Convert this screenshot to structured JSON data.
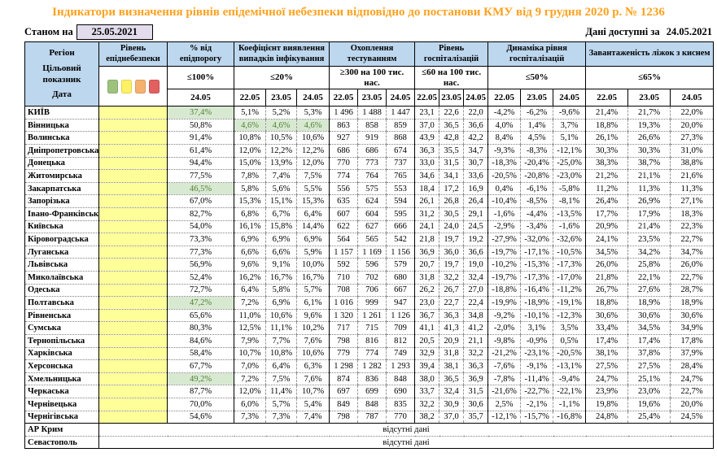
{
  "title": "Індикатори визначення рівнів епідемічної небезпеки відповідно до постанови КМУ від 9 грудня 2020 р. № 1236",
  "meta": {
    "as_of_label": "Станом на",
    "as_of_date": "25.05.2021",
    "available_label": "Дані доступні за",
    "available_date": "24.05.2021"
  },
  "colors": {
    "title_orange": "#FFA21F",
    "header_blue": "#BDD7EE",
    "level_yellow": "#FFFF99",
    "green_cell_bg": "#D8E9D2",
    "green_cell_text": "#538135",
    "date_box_lavender": "#E2DCEC"
  },
  "header": {
    "region_label": "Регіон",
    "target_label": "Цільовий показник",
    "date_label": "Дата",
    "legend_colors": [
      "#9CC27D",
      "#FFF164",
      "#F5B26E",
      "#E26060"
    ],
    "legend_names": [
      "green-level",
      "yellow-level",
      "orange-level",
      "red-level"
    ],
    "groups": [
      {
        "label": "Рівень епіднебезпеки",
        "target": "",
        "dates": []
      },
      {
        "label": "% від епідпорогу",
        "target": "≤100%",
        "dates": [
          "24.05"
        ]
      },
      {
        "label": "Коефіцієнт виявлення випадків інфікування",
        "target": "≤20%",
        "dates": [
          "22.05",
          "23.05",
          "24.05"
        ]
      },
      {
        "label": "Охоплення тестуванням",
        "target": "≥300 на 100 тис. нас.",
        "dates": [
          "22.05",
          "23.05",
          "24.05"
        ]
      },
      {
        "label": "Рівень госпіталізацій",
        "target": "≤60 на 100 тис. нас.",
        "dates": [
          "22.05",
          "23.05",
          "24.05"
        ]
      },
      {
        "label": "Динаміка рівня госпіталізацій",
        "target": "≤50%",
        "dates": [
          "22.05",
          "23.05",
          "24.05"
        ]
      },
      {
        "label": "Завантаженість ліжок з киснем",
        "target": "≤65%",
        "dates": [
          "22.05",
          "23.05",
          "24.05"
        ]
      }
    ]
  },
  "rows": [
    {
      "name": "КИЇВ",
      "values": [
        "37,4%",
        "5,1%",
        "5,2%",
        "5,3%",
        "1 496",
        "1 488",
        "1 447",
        "23,1",
        "22,6",
        "22,0",
        "-4,2%",
        "-6,2%",
        "-9,6%",
        "21,4%",
        "21,7%",
        "22,0%"
      ],
      "green": [
        0
      ]
    },
    {
      "name": "Вінницька",
      "values": [
        "50,8%",
        "4,6%",
        "4,6%",
        "4,6%",
        "863",
        "858",
        "859",
        "37,0",
        "36,5",
        "36,6",
        "4,0%",
        "1,4%",
        "3,7%",
        "18,8%",
        "19,3%",
        "20,0%"
      ],
      "green": [
        1,
        2,
        3
      ]
    },
    {
      "name": "Волинська",
      "values": [
        "91,4%",
        "10,8%",
        "10,5%",
        "10,6%",
        "927",
        "919",
        "868",
        "43,9",
        "42,8",
        "42,2",
        "8,4%",
        "4,5%",
        "5,1%",
        "26,1%",
        "26,6%",
        "27,3%"
      ],
      "green": []
    },
    {
      "name": "Дніпропетровська",
      "values": [
        "61,4%",
        "12,0%",
        "12,2%",
        "12,2%",
        "686",
        "686",
        "674",
        "36,3",
        "35,5",
        "34,7",
        "-9,3%",
        "-8,3%",
        "-12,1%",
        "30,3%",
        "30,3%",
        "31,0%"
      ],
      "green": []
    },
    {
      "name": "Донецька",
      "values": [
        "94,4%",
        "15,0%",
        "13,9%",
        "12,0%",
        "770",
        "773",
        "737",
        "33,0",
        "31,5",
        "30,7",
        "-18,3%",
        "-20,4%",
        "-25,0%",
        "38,3%",
        "38,7%",
        "38,8%"
      ],
      "green": []
    },
    {
      "name": "Житомирська",
      "values": [
        "77,5%",
        "7,8%",
        "7,4%",
        "7,5%",
        "774",
        "764",
        "765",
        "34,6",
        "34,1",
        "33,6",
        "-20,5%",
        "-20,8%",
        "-23,0%",
        "21,2%",
        "21,1%",
        "21,6%"
      ],
      "green": []
    },
    {
      "name": "Закарпатська",
      "values": [
        "46,5%",
        "5,8%",
        "5,6%",
        "5,5%",
        "556",
        "575",
        "553",
        "18,4",
        "17,2",
        "16,9",
        "0,4%",
        "-6,1%",
        "-5,8%",
        "11,2%",
        "11,3%",
        "11,3%"
      ],
      "green": [
        0
      ]
    },
    {
      "name": "Запорізька",
      "values": [
        "67,0%",
        "15,3%",
        "15,1%",
        "15,3%",
        "635",
        "624",
        "594",
        "26,1",
        "26,8",
        "26,4",
        "-10,4%",
        "-8,5%",
        "-8,1%",
        "26,4%",
        "26,9%",
        "27,1%"
      ],
      "green": []
    },
    {
      "name": "Івано-Франківська",
      "values": [
        "82,7%",
        "6,8%",
        "6,7%",
        "6,4%",
        "607",
        "604",
        "595",
        "31,2",
        "30,5",
        "29,1",
        "-1,6%",
        "-4,4%",
        "-13,5%",
        "17,7%",
        "17,9%",
        "18,3%"
      ],
      "green": []
    },
    {
      "name": "Київська",
      "values": [
        "54,0%",
        "16,1%",
        "15,8%",
        "14,4%",
        "622",
        "627",
        "666",
        "24,1",
        "24,0",
        "24,5",
        "-2,9%",
        "-3,4%",
        "-1,6%",
        "20,9%",
        "21,4%",
        "22,3%"
      ],
      "green": []
    },
    {
      "name": "Кіровоградська",
      "values": [
        "73,3%",
        "6,9%",
        "6,9%",
        "6,9%",
        "564",
        "565",
        "542",
        "21,8",
        "19,7",
        "19,2",
        "-27,9%",
        "-32,0%",
        "-32,6%",
        "24,1%",
        "23,5%",
        "22,7%"
      ],
      "green": []
    },
    {
      "name": "Луганська",
      "values": [
        "77,3%",
        "6,6%",
        "6,6%",
        "5,9%",
        "1 157",
        "1 169",
        "1 156",
        "36,9",
        "36,0",
        "36,6",
        "-19,7%",
        "-17,1%",
        "-10,5%",
        "34,5%",
        "34,2%",
        "34,7%"
      ],
      "green": []
    },
    {
      "name": "Львівська",
      "values": [
        "56,9%",
        "9,6%",
        "9,1%",
        "10,0%",
        "592",
        "596",
        "579",
        "20,7",
        "19,7",
        "19,0",
        "-10,2%",
        "-15,3%",
        "-17,3%",
        "26,0%",
        "25,8%",
        "26,0%"
      ],
      "green": []
    },
    {
      "name": "Миколаївська",
      "values": [
        "52,4%",
        "16,2%",
        "16,7%",
        "16,7%",
        "710",
        "702",
        "680",
        "31,8",
        "32,2",
        "32,4",
        "-19,7%",
        "-17,3%",
        "-17,0%",
        "21,8%",
        "22,1%",
        "22,7%"
      ],
      "green": []
    },
    {
      "name": "Одеська",
      "values": [
        "72,7%",
        "6,4%",
        "5,8%",
        "5,7%",
        "708",
        "706",
        "667",
        "26,2",
        "26,7",
        "27,0",
        "-18,8%",
        "-16,4%",
        "-11,2%",
        "26,7%",
        "27,6%",
        "28,7%"
      ],
      "green": []
    },
    {
      "name": "Полтавська",
      "values": [
        "47,2%",
        "7,2%",
        "6,9%",
        "6,1%",
        "1 016",
        "999",
        "947",
        "23,0",
        "22,7",
        "22,4",
        "-19,9%",
        "-18,9%",
        "-19,1%",
        "18,8%",
        "18,9%",
        "18,9%"
      ],
      "green": [
        0
      ]
    },
    {
      "name": "Рівненська",
      "values": [
        "65,6%",
        "11,0%",
        "10,6%",
        "9,6%",
        "1 320",
        "1 261",
        "1 126",
        "36,7",
        "36,3",
        "34,8",
        "-9,2%",
        "-10,1%",
        "-12,3%",
        "30,6%",
        "30,6%",
        "30,6%"
      ],
      "green": []
    },
    {
      "name": "Сумська",
      "values": [
        "80,3%",
        "12,5%",
        "11,1%",
        "10,2%",
        "717",
        "715",
        "709",
        "41,1",
        "41,3",
        "41,2",
        "-2,0%",
        "3,1%",
        "3,5%",
        "33,4%",
        "34,5%",
        "34,9%"
      ],
      "green": []
    },
    {
      "name": "Тернопільська",
      "values": [
        "84,6%",
        "7,9%",
        "7,7%",
        "7,6%",
        "798",
        "816",
        "812",
        "20,5",
        "20,9",
        "21,1",
        "-9,8%",
        "-0,9%",
        "0,5%",
        "17,4%",
        "17,4%",
        "17,8%"
      ],
      "green": []
    },
    {
      "name": "Харківська",
      "values": [
        "58,4%",
        "10,7%",
        "10,8%",
        "10,6%",
        "779",
        "774",
        "749",
        "32,9",
        "31,8",
        "32,2",
        "-21,2%",
        "-23,1%",
        "-20,5%",
        "38,1%",
        "37,8%",
        "37,9%"
      ],
      "green": []
    },
    {
      "name": "Херсонська",
      "values": [
        "67,7%",
        "7,0%",
        "6,4%",
        "6,3%",
        "1 298",
        "1 282",
        "1 293",
        "39,4",
        "38,1",
        "36,3",
        "-7,6%",
        "-9,1%",
        "-13,1%",
        "27,5%",
        "27,5%",
        "28,4%"
      ],
      "green": []
    },
    {
      "name": "Хмельницька",
      "values": [
        "49,2%",
        "7,2%",
        "7,5%",
        "7,6%",
        "874",
        "836",
        "848",
        "38,0",
        "36,5",
        "36,9",
        "-7,8%",
        "-11,4%",
        "-9,4%",
        "24,7%",
        "25,1%",
        "24,7%"
      ],
      "green": [
        0
      ]
    },
    {
      "name": "Черкаська",
      "values": [
        "87,7%",
        "12,0%",
        "11,4%",
        "10,7%",
        "697",
        "699",
        "690",
        "33,7",
        "32,4",
        "31,5",
        "-21,6%",
        "-22,7%",
        "-22,1%",
        "23,9%",
        "23,0%",
        "22,7%"
      ],
      "green": []
    },
    {
      "name": "Чернівецька",
      "values": [
        "70,0%",
        "6,0%",
        "5,7%",
        "5,4%",
        "849",
        "848",
        "835",
        "32,2",
        "30,9",
        "30,6",
        "2,5%",
        "-2,1%",
        "-1,1%",
        "19,8%",
        "19,6%",
        "20,0%"
      ],
      "green": []
    },
    {
      "name": "Чернігівська",
      "values": [
        "54,6%",
        "7,3%",
        "7,3%",
        "7,4%",
        "798",
        "787",
        "770",
        "38,2",
        "37,0",
        "35,7",
        "-12,1%",
        "-15,7%",
        "-16,8%",
        "24,8%",
        "25,4%",
        "24,5%"
      ],
      "green": []
    }
  ],
  "no_data_rows": [
    {
      "name": "АР Крим",
      "text": "відсутні дані"
    },
    {
      "name": "Севастополь",
      "text": "відсутні дані"
    }
  ]
}
